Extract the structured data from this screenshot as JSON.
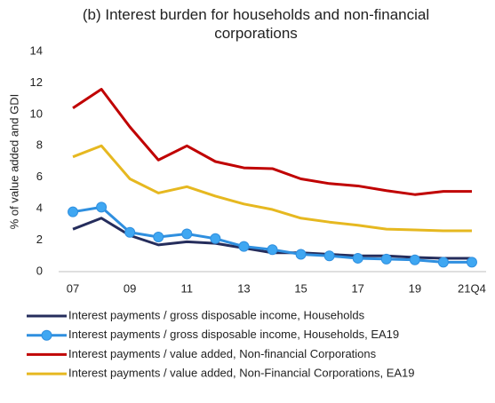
{
  "chart_data": {
    "type": "line",
    "title": "(b) Interest burden for households and non-financial corporations",
    "y_label": "% of value added and GDI",
    "categories": [
      "07",
      null,
      "09",
      null,
      "11",
      null,
      "13",
      null,
      "15",
      null,
      "17",
      null,
      "19",
      null,
      "21Q4"
    ],
    "series": [
      {
        "name": "Interest payments / gross disposable income, Households",
        "color": "#252d5c",
        "marker": false,
        "values": [
          2.7,
          3.4,
          2.3,
          1.7,
          1.9,
          1.8,
          1.5,
          1.2,
          1.2,
          1.1,
          1.0,
          1.0,
          0.9,
          0.85,
          0.85
        ]
      },
      {
        "name": "Interest payments / gross disposable income, Households, EA19",
        "color": "#2f8fdf",
        "marker": true,
        "values": [
          3.8,
          4.1,
          2.5,
          2.2,
          2.4,
          2.1,
          1.6,
          1.4,
          1.1,
          1.0,
          0.85,
          0.8,
          0.75,
          0.6,
          0.6
        ]
      },
      {
        "name": "Interest payments / value added, Non-financial Corporations",
        "color": "#c00000",
        "marker": false,
        "values": [
          10.4,
          11.6,
          9.2,
          7.1,
          8.0,
          7.0,
          6.6,
          6.55,
          5.9,
          5.6,
          5.45,
          5.15,
          4.9,
          5.1,
          5.1
        ]
      },
      {
        "name": "Interest payments / value added, Non-Financial Corporations, EA19",
        "color": "#e6b820",
        "marker": false,
        "values": [
          7.3,
          8.0,
          5.9,
          5.0,
          5.4,
          4.8,
          4.3,
          3.95,
          3.4,
          3.15,
          2.95,
          2.7,
          2.65,
          2.6,
          2.6
        ]
      }
    ],
    "ylim": [
      0,
      14
    ],
    "yticks": [
      0,
      2,
      4,
      6,
      8,
      10,
      12,
      14
    ],
    "grid": false
  }
}
